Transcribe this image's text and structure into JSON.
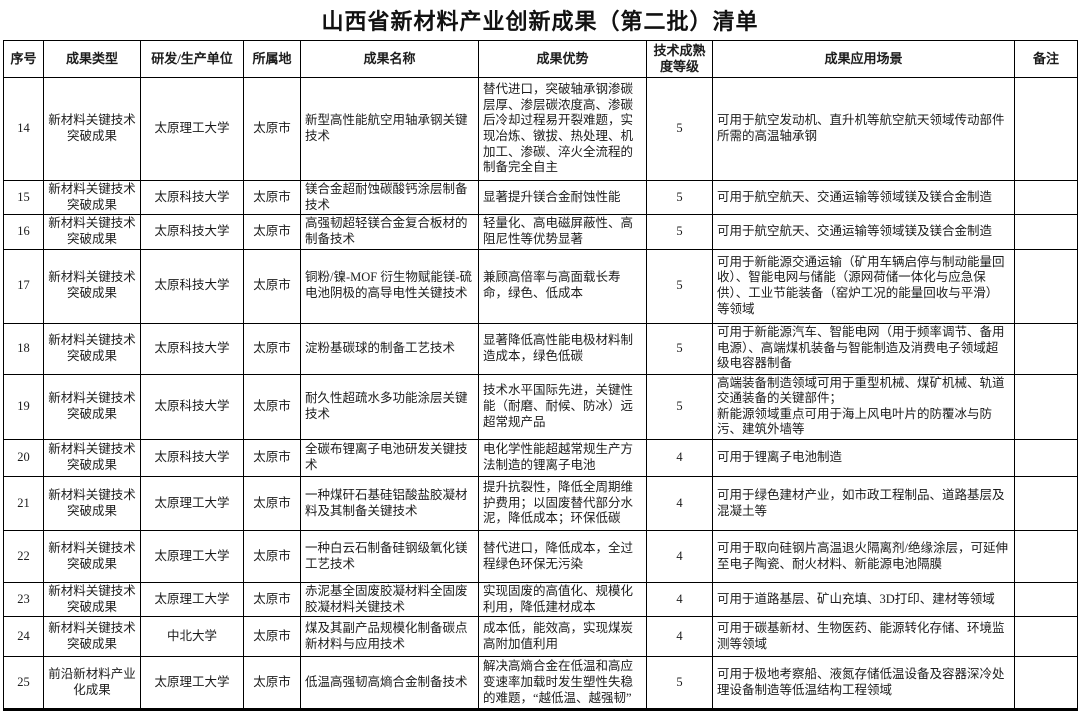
{
  "title": "山西省新材料产业创新成果（第二批）清单",
  "table": {
    "headers": [
      "序号",
      "成果类型",
      "研发/生产单位",
      "所属地",
      "成果名称",
      "成果优势",
      "技术成熟度等级",
      "成果应用场景",
      "备注"
    ],
    "rows": [
      {
        "no": "14",
        "type": "新材料关键技术突破成果",
        "unit": "太原理工大学",
        "location": "太原市",
        "name": "新型高性能航空用轴承钢关键技术",
        "advantage": "替代进口，突破轴承钢渗碳层厚、渗层碳浓度高、渗碳后冷却过程易开裂难题，实现冶炼、镦拔、热处理、机加工、渗碳、淬火全流程的制备完全自主",
        "maturity": "5",
        "application": "可用于航空发动机、直升机等航空航天领域传动部件所需的高温轴承钢",
        "remark": ""
      },
      {
        "no": "15",
        "type": "新材料关键技术突破成果",
        "unit": "太原科技大学",
        "location": "太原市",
        "name": "镁合金超耐蚀碳酸钙涂层制备技术",
        "advantage": "显著提升镁合金耐蚀性能",
        "maturity": "5",
        "application": "可用于航空航天、交通运输等领域镁及镁合金制造",
        "remark": ""
      },
      {
        "no": "16",
        "type": "新材料关键技术突破成果",
        "unit": "太原科技大学",
        "location": "太原市",
        "name": "高强韧超轻镁合金复合板材的制备技术",
        "advantage": "轻量化、高电磁屏蔽性、高阻尼性等优势显著",
        "maturity": "5",
        "application": "可用于航空航天、交通运输等领域镁及镁合金制造",
        "remark": ""
      },
      {
        "no": "17",
        "type": "新材料关键技术突破成果",
        "unit": "太原科技大学",
        "location": "太原市",
        "name": "铜粉/镍-MOF 衍生物赋能镁-硫电池阴极的高导电性关键技术",
        "advantage": "兼顾高倍率与高面载长寿命，绿色、低成本",
        "maturity": "5",
        "application": "可用于新能源交通运输（矿用车辆启停与制动能量回收）、智能电网与储能（源网荷储一体化与应急保供）、工业节能装备（窑炉工况的能量回收与平滑）等领域",
        "remark": ""
      },
      {
        "no": "18",
        "type": "新材料关键技术突破成果",
        "unit": "太原科技大学",
        "location": "太原市",
        "name": "淀粉基碳球的制备工艺技术",
        "advantage": "显著降低高性能电极材料制造成本，绿色低碳",
        "maturity": "5",
        "application": "可用于新能源汽车、智能电网（用于频率调节、备用电源）、高端煤机装备与智能制造及消费电子领域超级电容器制备",
        "remark": ""
      },
      {
        "no": "19",
        "type": "新材料关键技术突破成果",
        "unit": "太原科技大学",
        "location": "太原市",
        "name": "耐久性超疏水多功能涂层关键技术",
        "advantage": "技术水平国际先进，关键性能（耐磨、耐候、防冰）远超常规产品",
        "maturity": "5",
        "application": "高端装备制造领域可用于重型机械、煤矿机械、轨道交通装备的关键部件；\n新能源领域重点可用于海上风电叶片的防覆冰与防污、建筑外墙等",
        "remark": ""
      },
      {
        "no": "20",
        "type": "新材料关键技术突破成果",
        "unit": "太原科技大学",
        "location": "太原市",
        "name": "全碳布锂离子电池研发关键技术",
        "advantage": "电化学性能超越常规生产方法制造的锂离子电池",
        "maturity": "4",
        "application": "可用于锂离子电池制造",
        "remark": ""
      },
      {
        "no": "21",
        "type": "新材料关键技术突破成果",
        "unit": "太原理工大学",
        "location": "太原市",
        "name": "一种煤矸石基硅铝酸盐胶凝材料及其制备关键技术",
        "advantage": "提升抗裂性，降低全周期维护费用；以固废替代部分水泥，降低成本；环保低碳",
        "maturity": "4",
        "application": "可用于绿色建材产业，如市政工程制品、道路基层及混凝土等",
        "remark": ""
      },
      {
        "no": "22",
        "type": "新材料关键技术突破成果",
        "unit": "太原理工大学",
        "location": "太原市",
        "name": "一种白云石制备硅钢级氧化镁工艺技术",
        "advantage": "替代进口，降低成本，全过程绿色环保无污染",
        "maturity": "4",
        "application": "可用于取向硅钢片高温退火隔离剂/绝缘涂层，可延伸至电子陶瓷、耐火材料、新能源电池隔膜",
        "remark": ""
      },
      {
        "no": "23",
        "type": "新材料关键技术突破成果",
        "unit": "太原理工大学",
        "location": "太原市",
        "name": "赤泥基全固废胶凝材料全固废胶凝材料关键技术",
        "advantage": "实现固废的高值化、规模化利用，降低建材成本",
        "maturity": "4",
        "application": "可用于道路基层、矿山充填、3D打印、建材等领域",
        "remark": ""
      },
      {
        "no": "24",
        "type": "新材料关键技术突破成果",
        "unit": "中北大学",
        "location": "太原市",
        "name": "煤及其副产品规模化制备碳点新材料与应用技术",
        "advantage": "成本低，能效高，实现煤炭高附加值利用",
        "maturity": "4",
        "application": "可用于碳基新材、生物医药、能源转化存储、环境监测等领域",
        "remark": ""
      },
      {
        "no": "25",
        "type": "前沿新材料产业化成果",
        "unit": "太原理工大学",
        "location": "太原市",
        "name": "低温高强韧高熵合金制备技术",
        "advantage": "解决高熵合金在低温和高应变速率加载时发生塑性失稳的难题，“越低温、越强韧”",
        "maturity": "5",
        "application": "可用于极地考察船、液氮存储低温设备及容器深冷处理设备制造等低温结构工程领域",
        "remark": ""
      }
    ]
  }
}
